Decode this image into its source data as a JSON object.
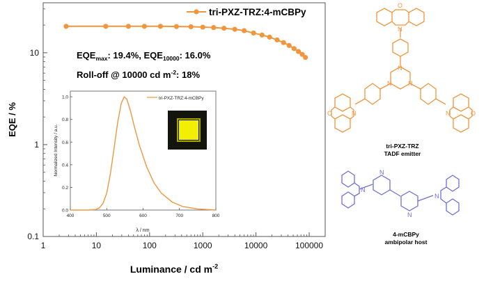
{
  "chart_data": [
    {
      "type": "line",
      "xlabel": "Luminance / cd m",
      "xlabel_sup": "-2",
      "ylabel": "EQE / %",
      "xscale": "log",
      "yscale": "log",
      "xlim": [
        1,
        200000
      ],
      "ylim": [
        0.1,
        35
      ],
      "x_ticks": [
        1,
        10,
        100,
        1000,
        10000,
        100000
      ],
      "x_tick_labels": [
        "1",
        "10",
        "100",
        "1000",
        "10000",
        "100000"
      ],
      "y_ticks": [
        0.1,
        1,
        10
      ],
      "y_tick_labels": [
        "0.1",
        "1",
        "10"
      ],
      "legend": "top-right",
      "series": [
        {
          "name": "tri-PXZ-TRZ:4-mCBPy",
          "color": "#f0963c",
          "marker": "circle",
          "x": [
            2.7,
            15,
            40,
            80,
            160,
            320,
            600,
            1000,
            1600,
            2500,
            4000,
            6000,
            9000,
            13000,
            18000,
            25000,
            33000,
            42000,
            52000,
            63000,
            74000,
            85000
          ],
          "y": [
            19.4,
            19.4,
            19.4,
            19.4,
            19.4,
            19.3,
            19.2,
            19.0,
            18.8,
            18.5,
            18.0,
            17.4,
            16.4,
            15.6,
            14.8,
            13.8,
            12.9,
            12.0,
            11.1,
            10.3,
            9.6,
            8.9
          ]
        }
      ],
      "annotations": {
        "line1": {
          "a": "EQE",
          "a_sub": "max",
          "b": ": 19.4%, EQE",
          "b_sub": "10000",
          "c": ": 16.0%"
        },
        "line2": {
          "a": "Roll-off @ 10000 cd m",
          "a_sup": "-2",
          "b": ": 18%"
        }
      }
    },
    {
      "type": "line",
      "xlabel": "λ / nm",
      "ylabel": "Normalized Intensity / a.u.",
      "xlim": [
        400,
        800
      ],
      "ylim": [
        0,
        1.05
      ],
      "x_ticks": [
        400,
        500,
        600,
        700,
        800
      ],
      "x_tick_labels": [
        "400",
        "500",
        "600",
        "700",
        "800"
      ],
      "y_ticks": [
        0,
        0.2,
        0.4,
        0.6,
        0.8,
        1.0
      ],
      "y_tick_labels": [
        "0.0",
        "0.2",
        "0.4",
        "0.6",
        "0.8",
        "1.0"
      ],
      "legend": "top-right",
      "series": [
        {
          "name": "tri-PXZ-TRZ:4-mCBPy",
          "color": "#f0963c",
          "x": [
            400,
            450,
            470,
            480,
            490,
            500,
            510,
            520,
            530,
            540,
            548,
            555,
            565,
            575,
            590,
            610,
            630,
            650,
            680,
            710,
            750,
            800
          ],
          "y": [
            0,
            0,
            0.005,
            0.02,
            0.06,
            0.15,
            0.32,
            0.54,
            0.77,
            0.94,
            1.0,
            0.98,
            0.88,
            0.75,
            0.57,
            0.38,
            0.24,
            0.15,
            0.07,
            0.03,
            0.01,
            0.0
          ]
        }
      ]
    }
  ],
  "structures": {
    "emitter_name": "tri-PXZ-TRZ",
    "emitter_role": "TADF emitter",
    "host_name": "4-mCBPy",
    "host_role": "ambipolar host",
    "emitter_color": "#f0963c",
    "host_color": "#6f6fd6",
    "atoms": {
      "O": "O",
      "N": "N"
    }
  }
}
